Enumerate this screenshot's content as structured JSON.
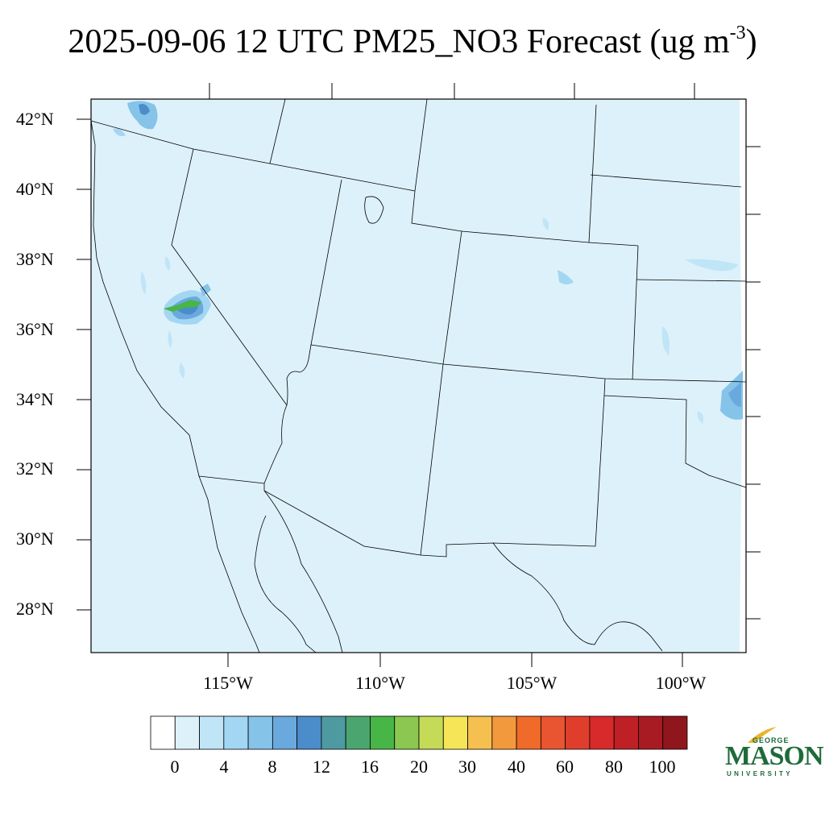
{
  "title": {
    "text": "2025-09-06 12 UTC PM25_NO3 Forecast (ug m",
    "superscript": "-3",
    "closing": ")"
  },
  "map": {
    "background_color": "#ddf1fb",
    "lat_labels": [
      "42°N",
      "40°N",
      "38°N",
      "36°N",
      "34°N",
      "32°N",
      "30°N",
      "28°N"
    ],
    "lon_labels": [
      "115°W",
      "110°W",
      "105°W",
      "100°W"
    ]
  },
  "colorbar": {
    "colors": [
      "#ffffff",
      "#ddf1fb",
      "#bfe5f7",
      "#a3d6f2",
      "#86c3e8",
      "#69a9dd",
      "#4b8ccb",
      "#4d9aa0",
      "#4ba56e",
      "#48b547",
      "#8bc751",
      "#c5da57",
      "#f6e657",
      "#f6c050",
      "#f3993d",
      "#f06a2a",
      "#e85530",
      "#e03e2c",
      "#d82a2a",
      "#bf2026",
      "#a81b22",
      "#8f161d"
    ],
    "labels": [
      "0",
      "4",
      "8",
      "12",
      "16",
      "20",
      "30",
      "40",
      "60",
      "80",
      "100"
    ]
  },
  "logo": {
    "line1": "GEORGE",
    "line2": "MASON",
    "line3": "UNIVERSITY",
    "color": "#1e6b3a"
  }
}
